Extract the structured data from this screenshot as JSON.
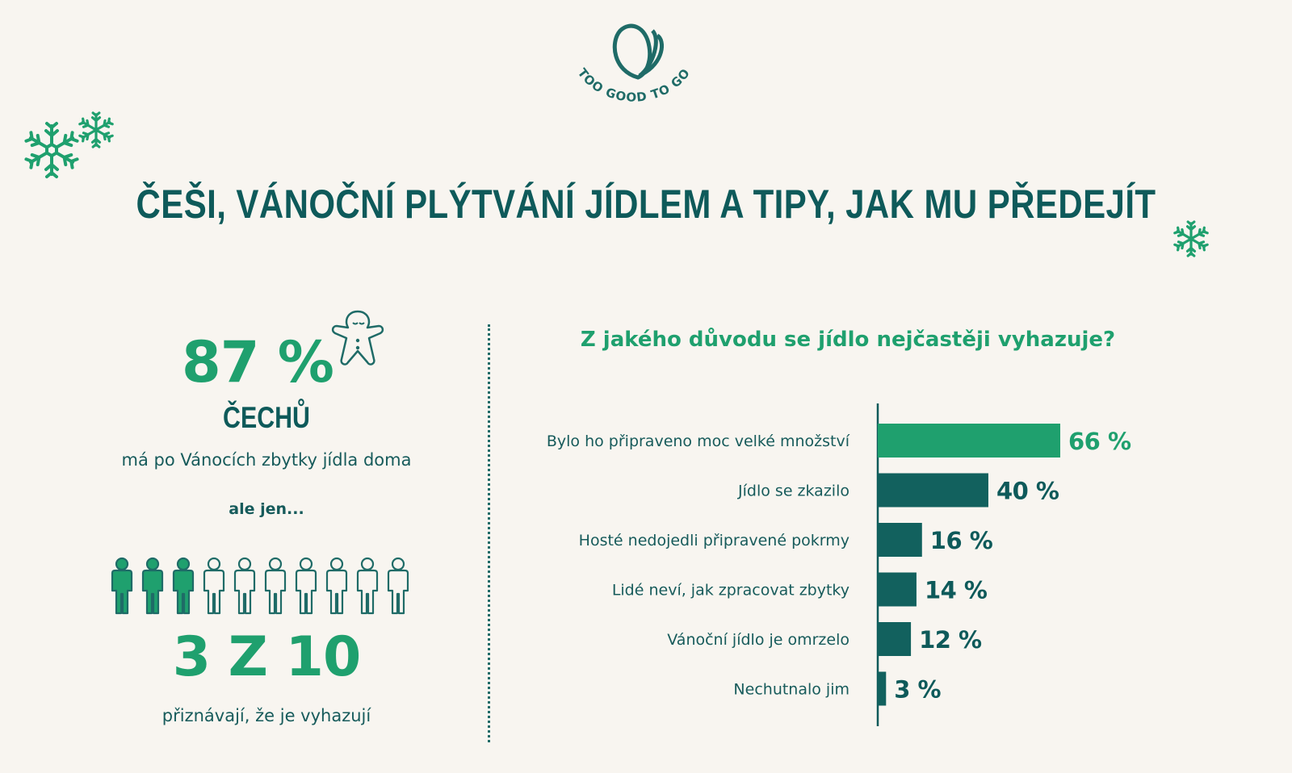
{
  "brand": {
    "name": "TOO GOOD TO GO",
    "logo_icon": "leaf-icon",
    "color": "#1f6b67"
  },
  "title": "ČEŠI, VÁNOČNÍ PLÝTVÁNÍ JÍDLEM A TIPY, JAK MU PŘEDEJÍT",
  "colors": {
    "green": "#1fa06e",
    "teal": "#0e5a5a",
    "background": "#f8f5f0"
  },
  "left_panel": {
    "stat_percent": "87 %",
    "stat_noun": "ČECHŮ",
    "stat_text": "má po Vánocích zbytky jídla doma",
    "connector": "ale jen...",
    "people_highlighted": 3,
    "people_total": 10,
    "stat_ratio": "3 Z 10",
    "ratio_text": "přiznávají, že je vyhazují",
    "decoration_icon": "gingerbread-man-icon"
  },
  "chart_data": {
    "type": "bar",
    "orientation": "horizontal",
    "title": "Z jakého důvodu se jídlo nejčastěji vyhazuje?",
    "categories": [
      "Bylo ho připraveno moc velké množství",
      "Jídlo se zkazilo",
      "Hosté nedojedli připravené pokrmy",
      "Lidé neví, jak zpracovat zbytky",
      "Vánoční jídlo je omrzelo",
      "Nechutnalo jim"
    ],
    "values": [
      66,
      40,
      16,
      14,
      12,
      3
    ],
    "value_labels": [
      "66 %",
      "40 %",
      "16 %",
      "14 %",
      "12 %",
      "3 %"
    ],
    "unit": "%",
    "highlight_index": 0,
    "bar_colors": {
      "highlight": "#1fa06e",
      "default": "#12615e"
    },
    "grid": false,
    "legend": "none"
  }
}
